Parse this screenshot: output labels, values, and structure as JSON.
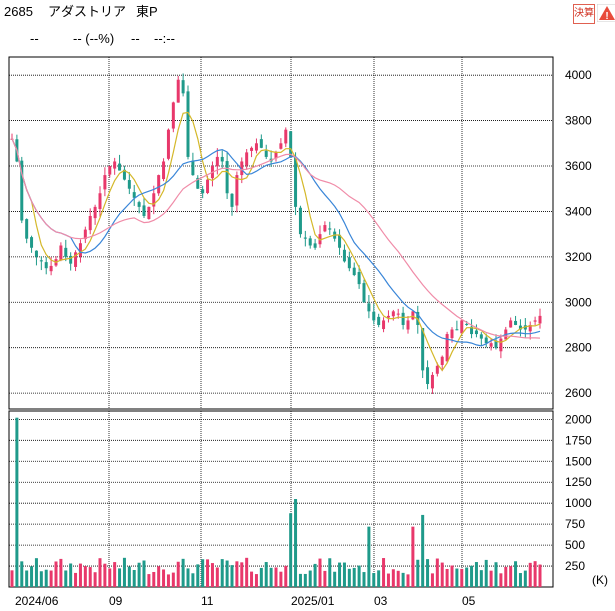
{
  "header": {
    "code": "2685",
    "name": "アダストリア",
    "market": "東P",
    "price": "--",
    "change": "-- (--%)",
    "volume": "--",
    "time": "--:--",
    "badge_kessan": "決算",
    "badge_warn": "!"
  },
  "colors": {
    "up": "#e8386b",
    "down": "#1f9a8a",
    "ma_short": "#d4b82a",
    "ma_mid": "#3a86d8",
    "ma_long": "#f08ca8",
    "grid": "#000000"
  },
  "chart_data": [
    {
      "type": "candlestick",
      "y_ticks": [
        "4000",
        "3800",
        "3600",
        "3400",
        "3200",
        "3000",
        "2800",
        "2600"
      ],
      "ylim": [
        2530,
        4080
      ],
      "x_ticks": [
        "2024/06",
        "09",
        "11",
        "2025/01",
        "03",
        "05"
      ],
      "series": [
        {
          "name": "",
          "values": [
            3720,
            3620,
            3360,
            3280,
            3240,
            3200,
            3180,
            3150,
            3160,
            3190,
            3250,
            3200,
            3170,
            3220,
            3260,
            3320,
            3380,
            3420,
            3480,
            3560,
            3600,
            3620,
            3580,
            3540,
            3500,
            3460,
            3420,
            3380,
            3420,
            3480,
            3560,
            3620,
            3760,
            3880,
            3980,
            3920,
            3640,
            3560,
            3500,
            3480,
            3540,
            3600,
            3640,
            3620,
            3480,
            3420,
            3560,
            3620,
            3660,
            3680,
            3700,
            3680,
            3640,
            3620,
            3660,
            3700,
            3760,
            3640,
            3420,
            3300,
            3280,
            3250,
            3240,
            3300,
            3340,
            3320,
            3280,
            3240,
            3180,
            3150,
            3120,
            3080,
            3000,
            2960,
            2920,
            2900,
            2920,
            2940,
            2960,
            2950,
            2900,
            2920,
            2960,
            2900,
            2700,
            2640,
            2680,
            2720,
            2760,
            2860,
            2880,
            2880,
            2920,
            2900,
            2860,
            2860,
            2840,
            2820,
            2820,
            2800,
            2840,
            2880,
            2920,
            2900,
            2880,
            2880,
            2900,
            2920,
            2940
          ]
        }
      ]
    },
    {
      "type": "bar",
      "y_ticks": [
        "2000",
        "1750",
        "1500",
        "1250",
        "1000",
        "750",
        "500",
        "250"
      ],
      "unit": "(K)",
      "ylim": [
        0,
        2100
      ]
    }
  ]
}
